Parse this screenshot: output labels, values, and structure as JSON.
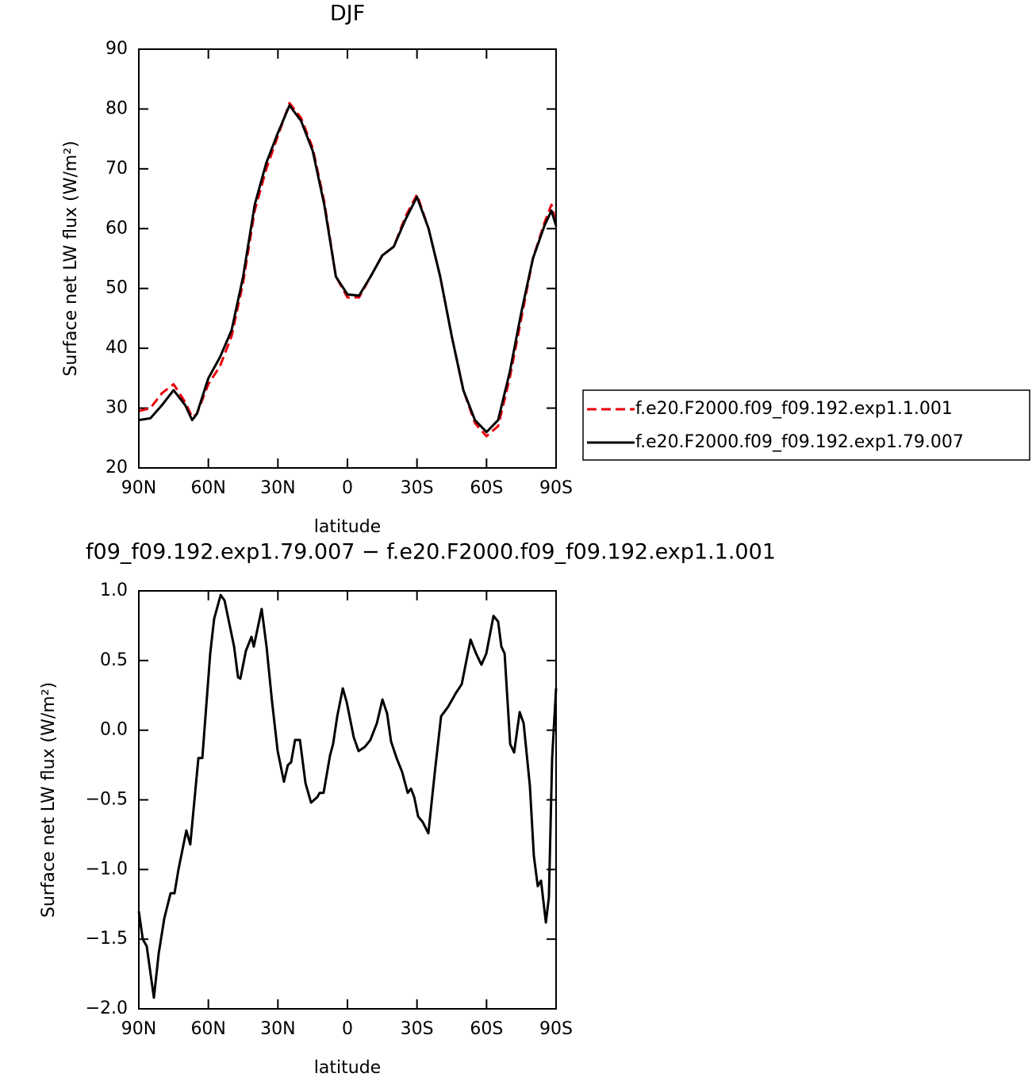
{
  "chart_data": [
    {
      "type": "line",
      "title": "DJF",
      "xlabel": "latitude",
      "ylabel": "Surface net LW flux (W/m²)",
      "x": [
        90,
        85,
        80,
        75,
        70,
        67,
        65,
        60,
        55,
        50,
        45,
        40,
        35,
        30,
        25,
        20,
        15,
        10,
        5,
        0,
        -5,
        -10,
        -15,
        -20,
        -25,
        -30,
        -35,
        -40,
        -45,
        -50,
        -55,
        -60,
        -65,
        -70,
        -75,
        -80,
        -85,
        -88,
        -90
      ],
      "series": [
        {
          "name": "f.e20.F2000.f09_f09.192.exp1.1.001",
          "color": "#e8000b",
          "dashed": true,
          "values": [
            29.5,
            30,
            32.5,
            34,
            31,
            28.5,
            29,
            34,
            37,
            42,
            51,
            63,
            70,
            75.5,
            81,
            78.5,
            73.5,
            64.5,
            52,
            48.5,
            48.5,
            52,
            55.5,
            57,
            62,
            65.7,
            60,
            52,
            42,
            33,
            27.5,
            25.3,
            27,
            35,
            45,
            55,
            61,
            64,
            61
          ]
        },
        {
          "name": "f.e20.F2000.f09_f09.192.exp1.79.007",
          "color": "#000000",
          "dashed": false,
          "values": [
            28,
            28.3,
            30.5,
            33,
            30.5,
            28,
            29,
            35,
            38.5,
            43,
            52,
            64,
            71,
            76,
            80.6,
            78,
            73,
            64,
            52,
            49,
            48.8,
            52,
            55.5,
            57,
            61.5,
            65.3,
            60,
            52,
            42,
            33,
            28,
            26,
            28,
            36,
            46,
            55,
            60.5,
            63,
            60.5
          ]
        }
      ],
      "xlim": [
        90,
        -90
      ],
      "ylim": [
        20,
        90
      ],
      "xticks": [
        {
          "value": 90,
          "label": "90N"
        },
        {
          "value": 60,
          "label": "60N"
        },
        {
          "value": 30,
          "label": "30N"
        },
        0,
        {
          "value": -30,
          "label": "30S"
        },
        {
          "value": -60,
          "label": "60S"
        },
        {
          "value": -90,
          "label": "90S"
        }
      ],
      "yticks": [
        20,
        30,
        40,
        50,
        60,
        70,
        80,
        90
      ],
      "legend": "right"
    },
    {
      "type": "line",
      "title": "f09_f09.192.exp1.79.007 − f.e20.F2000.f09_f09.192.exp1.1.001",
      "xlabel": "latitude",
      "ylabel": "Surface net LW flux (W/m²)",
      "x": [
        90,
        88.3,
        86.6,
        83.5,
        81.4,
        79,
        76.3,
        74.6,
        72.9,
        69.5,
        67.8,
        64.3,
        62.6,
        59.2,
        57.5,
        54.7,
        53,
        48.9,
        47.2,
        46.2,
        43.8,
        41.4,
        40.4,
        37,
        34.9,
        32.5,
        30.1,
        27.4,
        25.7,
        24.3,
        22.6,
        20.5,
        18.1,
        15.7,
        13,
        12,
        10.3,
        7.5,
        6.2,
        4.4,
        2,
        0.3,
        -2.7,
        -4.8,
        -7.5,
        -9.9,
        -12.7,
        -15.1,
        -17.1,
        -18.8,
        -21.2,
        -23.6,
        -26,
        -27.4,
        -28.8,
        -30.5,
        -32.5,
        -34.9,
        -37.7,
        -40.4,
        -43.5,
        -46.9,
        -49.3,
        -53.1,
        -55.5,
        -57.8,
        -59.9,
        -63,
        -65,
        -66.4,
        -67.8,
        -70.2,
        -71.9,
        -74.3,
        -76,
        -78.7,
        -80.4,
        -82.1,
        -83.5,
        -85.6,
        -86.9,
        -88.3,
        -90
      ],
      "series": [
        {
          "color": "#000000",
          "dashed": false,
          "values": [
            -1.3,
            -1.5,
            -1.55,
            -1.92,
            -1.6,
            -1.35,
            -1.17,
            -1.17,
            -1.0,
            -0.72,
            -0.82,
            -0.2,
            -0.2,
            0.55,
            0.8,
            0.97,
            0.93,
            0.6,
            0.38,
            0.37,
            0.57,
            0.67,
            0.6,
            0.87,
            0.6,
            0.2,
            -0.15,
            -0.37,
            -0.25,
            -0.23,
            -0.07,
            -0.07,
            -0.38,
            -0.52,
            -0.48,
            -0.45,
            -0.45,
            -0.18,
            -0.1,
            0.1,
            0.3,
            0.2,
            -0.05,
            -0.15,
            -0.12,
            -0.07,
            0.05,
            0.22,
            0.12,
            -0.08,
            -0.2,
            -0.3,
            -0.45,
            -0.42,
            -0.48,
            -0.62,
            -0.66,
            -0.74,
            -0.3,
            0.1,
            0.17,
            0.27,
            0.33,
            0.65,
            0.55,
            0.47,
            0.55,
            0.82,
            0.78,
            0.6,
            0.55,
            -0.1,
            -0.16,
            0.13,
            0.05,
            -0.4,
            -0.9,
            -1.12,
            -1.08,
            -1.38,
            -1.2,
            -0.2,
            0.3
          ]
        }
      ],
      "xlim": [
        90,
        -90
      ],
      "ylim": [
        -2,
        1
      ],
      "xticks": [
        {
          "value": 90,
          "label": "90N"
        },
        {
          "value": 60,
          "label": "60N"
        },
        {
          "value": 30,
          "label": "30N"
        },
        0,
        {
          "value": -30,
          "label": "30S"
        },
        {
          "value": -60,
          "label": "60S"
        },
        {
          "value": -90,
          "label": "90S"
        }
      ],
      "yticks": [
        {
          "value": -2,
          "label": "−2.0"
        },
        {
          "value": -1.5,
          "label": "−1.5"
        },
        {
          "value": -1,
          "label": "−1.0"
        },
        {
          "value": -0.5,
          "label": "−0.5"
        },
        {
          "value": 0,
          "label": "0.0"
        },
        0.5,
        {
          "value": 1,
          "label": "1.0"
        }
      ]
    }
  ]
}
